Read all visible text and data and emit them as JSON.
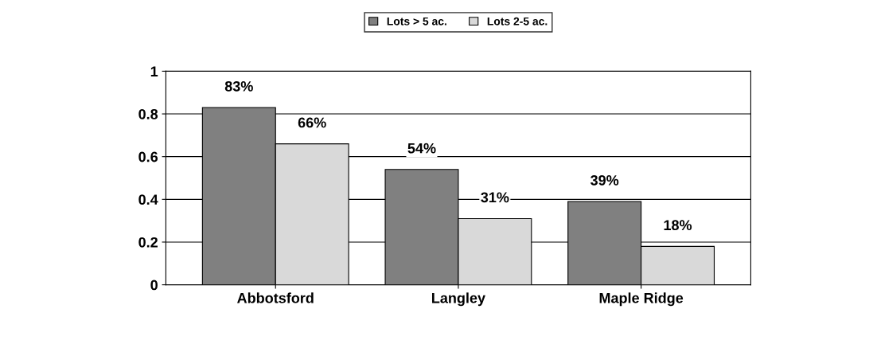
{
  "chart_data": {
    "type": "bar",
    "categories": [
      "Abbotsford",
      "Langley",
      "Maple Ridge"
    ],
    "series": [
      {
        "name": "Lots > 5 ac.",
        "color": "#808080",
        "values": [
          0.83,
          0.54,
          0.39
        ],
        "value_labels": [
          "83%",
          "54%",
          "39%"
        ]
      },
      {
        "name": "Lots 2-5 ac.",
        "color": "#d9d9d9",
        "values": [
          0.66,
          0.31,
          0.18
        ],
        "value_labels": [
          "66%",
          "31%",
          "18%"
        ]
      }
    ],
    "ylim": [
      0,
      1
    ],
    "yticks": [
      0,
      0.2,
      0.4,
      0.6,
      0.8,
      1
    ],
    "grid": "y",
    "legend": "top"
  }
}
